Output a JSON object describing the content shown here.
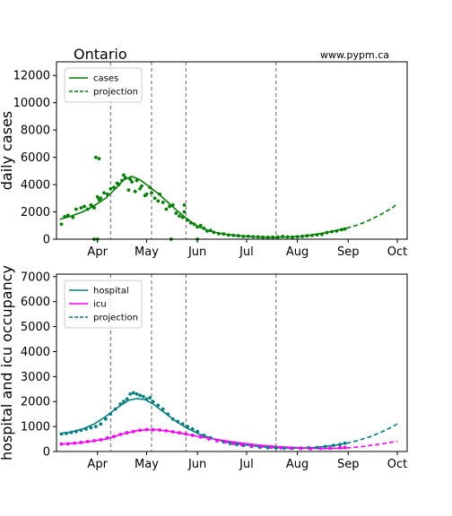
{
  "site": "www.pypm.ca",
  "chart_data": [
    {
      "type": "line",
      "title": "Ontario",
      "ylabel": "daily cases",
      "xlabel": "",
      "xlim": [
        "2021-03-07",
        "2021-10-07"
      ],
      "ylim": [
        0,
        13000
      ],
      "yticks": [
        0,
        2000,
        4000,
        6000,
        8000,
        10000,
        12000
      ],
      "xticks": [
        {
          "date": "2021-04-01",
          "label": "Apr"
        },
        {
          "date": "2021-05-01",
          "label": "May"
        },
        {
          "date": "2021-06-01",
          "label": "Jun"
        },
        {
          "date": "2021-07-01",
          "label": "Jul"
        },
        {
          "date": "2021-08-01",
          "label": "Aug"
        },
        {
          "date": "2021-09-01",
          "label": "Sep"
        },
        {
          "date": "2021-10-01",
          "label": "Oct"
        }
      ],
      "vlines": [
        "2021-04-09",
        "2021-05-04",
        "2021-05-25",
        "2021-07-19"
      ],
      "legend": {
        "position": "top-left",
        "entries": [
          {
            "label": "cases",
            "style": "solid",
            "color": "#008000"
          },
          {
            "label": "projection",
            "style": "dashed",
            "color": "#008000"
          }
        ]
      },
      "series": [
        {
          "name": "cases",
          "role": "model",
          "color": "#008000",
          "x": [
            "2021-03-09",
            "2021-03-16",
            "2021-03-23",
            "2021-03-30",
            "2021-04-06",
            "2021-04-12",
            "2021-04-17",
            "2021-04-22",
            "2021-04-27",
            "2021-05-02",
            "2021-05-08",
            "2021-05-14",
            "2021-05-20",
            "2021-05-26",
            "2021-06-01",
            "2021-06-08",
            "2021-06-15",
            "2021-06-22",
            "2021-06-29",
            "2021-07-06",
            "2021-07-13",
            "2021-07-20",
            "2021-07-27",
            "2021-08-03",
            "2021-08-10",
            "2021-08-17",
            "2021-08-24",
            "2021-08-31"
          ],
          "y": [
            1450,
            1700,
            2000,
            2450,
            3000,
            3700,
            4350,
            4600,
            4350,
            3900,
            3350,
            2700,
            2050,
            1450,
            950,
            620,
            420,
            300,
            220,
            170,
            150,
            145,
            165,
            210,
            310,
            450,
            620,
            800
          ]
        },
        {
          "name": "projection",
          "role": "projection",
          "color": "#008000",
          "x": [
            "2021-08-31",
            "2021-09-07",
            "2021-09-14",
            "2021-09-21",
            "2021-09-28",
            "2021-10-01"
          ],
          "y": [
            800,
            1050,
            1400,
            1820,
            2300,
            2620
          ]
        },
        {
          "name": "reported",
          "role": "points",
          "color": "#008000",
          "x": [
            "2021-03-10",
            "2021-03-12",
            "2021-03-14",
            "2021-03-17",
            "2021-03-19",
            "2021-03-22",
            "2021-03-24",
            "2021-03-26",
            "2021-03-28",
            "2021-03-29",
            "2021-03-30",
            "2021-04-01",
            "2021-04-02",
            "2021-04-03",
            "2021-04-05",
            "2021-04-07",
            "2021-04-09",
            "2021-04-11",
            "2021-04-13",
            "2021-04-14",
            "2021-04-16",
            "2021-04-17",
            "2021-04-18",
            "2021-04-20",
            "2021-04-21",
            "2021-04-22",
            "2021-04-24",
            "2021-04-25",
            "2021-04-27",
            "2021-04-28",
            "2021-04-30",
            "2021-05-01",
            "2021-05-03",
            "2021-05-04",
            "2021-05-06",
            "2021-05-08",
            "2021-05-09",
            "2021-05-11",
            "2021-05-13",
            "2021-05-15",
            "2021-05-17",
            "2021-05-19",
            "2021-05-21",
            "2021-05-23",
            "2021-05-24",
            "2021-05-26",
            "2021-05-28",
            "2021-05-30",
            "2021-06-01",
            "2021-06-03",
            "2021-06-05",
            "2021-06-07",
            "2021-06-09",
            "2021-06-11",
            "2021-06-14",
            "2021-06-17",
            "2021-06-20",
            "2021-06-23",
            "2021-06-26",
            "2021-06-29",
            "2021-07-02",
            "2021-07-05",
            "2021-07-08",
            "2021-07-11",
            "2021-07-14",
            "2021-07-17",
            "2021-07-20",
            "2021-07-23",
            "2021-07-26",
            "2021-07-29",
            "2021-08-01",
            "2021-08-04",
            "2021-08-07",
            "2021-08-10",
            "2021-08-13",
            "2021-08-16",
            "2021-08-19",
            "2021-08-22",
            "2021-08-25",
            "2021-08-28",
            "2021-08-30",
            "2021-03-31",
            "2021-04-02",
            "2021-03-30",
            "2021-04-01",
            "2021-05-16",
            "2021-05-24",
            "2021-06-01"
          ],
          "y": [
            1100,
            1650,
            1750,
            1600,
            2200,
            2300,
            2400,
            2200,
            2500,
            2400,
            2300,
            3100,
            2900,
            3000,
            3400,
            3300,
            3700,
            3800,
            4100,
            4000,
            4300,
            4700,
            4500,
            3600,
            4400,
            4200,
            3500,
            4300,
            3700,
            3900,
            3200,
            3300,
            3800,
            3400,
            3000,
            2800,
            3300,
            2700,
            2200,
            2400,
            2500,
            1900,
            1700,
            1600,
            2000,
            1400,
            1200,
            1100,
            900,
            1000,
            800,
            600,
            650,
            500,
            400,
            380,
            300,
            280,
            250,
            200,
            210,
            180,
            170,
            150,
            140,
            150,
            160,
            200,
            170,
            150,
            180,
            200,
            250,
            280,
            320,
            350,
            480,
            550,
            600,
            700,
            750,
            6000,
            5900,
            0,
            0,
            0,
            2500,
            0
          ]
        }
      ]
    },
    {
      "type": "line",
      "title": "",
      "ylabel": "hospital and icu occupancy",
      "xlabel": "",
      "xlim": [
        "2021-03-07",
        "2021-10-07"
      ],
      "ylim": [
        0,
        7100
      ],
      "yticks": [
        0,
        1000,
        2000,
        3000,
        4000,
        5000,
        6000,
        7000
      ],
      "xticks": [
        {
          "date": "2021-04-01",
          "label": "Apr"
        },
        {
          "date": "2021-05-01",
          "label": "May"
        },
        {
          "date": "2021-06-01",
          "label": "Jun"
        },
        {
          "date": "2021-07-01",
          "label": "Jul"
        },
        {
          "date": "2021-08-01",
          "label": "Aug"
        },
        {
          "date": "2021-09-01",
          "label": "Sep"
        },
        {
          "date": "2021-10-01",
          "label": "Oct"
        }
      ],
      "vlines": [
        "2021-04-09",
        "2021-05-04",
        "2021-05-25",
        "2021-07-19"
      ],
      "legend": {
        "position": "top-left",
        "entries": [
          {
            "label": "hospital",
            "style": "solid",
            "color": "#008080"
          },
          {
            "label": "icu",
            "style": "solid",
            "color": "#ff00ff"
          },
          {
            "label": "projection",
            "style": "dashed",
            "color": "#008080"
          }
        ]
      },
      "series": [
        {
          "name": "hospital",
          "role": "model",
          "color": "#008080",
          "x": [
            "2021-03-09",
            "2021-03-16",
            "2021-03-23",
            "2021-03-30",
            "2021-04-06",
            "2021-04-13",
            "2021-04-20",
            "2021-04-25",
            "2021-04-30",
            "2021-05-05",
            "2021-05-12",
            "2021-05-19",
            "2021-05-26",
            "2021-06-02",
            "2021-06-09",
            "2021-06-16",
            "2021-06-23",
            "2021-06-30",
            "2021-07-07",
            "2021-07-14",
            "2021-07-21",
            "2021-07-28",
            "2021-08-04",
            "2021-08-11",
            "2021-08-18",
            "2021-08-25",
            "2021-08-31"
          ],
          "y": [
            720,
            780,
            900,
            1100,
            1400,
            1750,
            2050,
            2120,
            2080,
            1900,
            1550,
            1200,
            920,
            700,
            540,
            420,
            330,
            260,
            210,
            170,
            145,
            135,
            140,
            160,
            200,
            260,
            330
          ]
        },
        {
          "name": "icu",
          "role": "model",
          "color": "#ff00ff",
          "x": [
            "2021-03-09",
            "2021-03-23",
            "2021-04-06",
            "2021-04-16",
            "2021-04-26",
            "2021-05-06",
            "2021-05-16",
            "2021-05-26",
            "2021-06-09",
            "2021-06-23",
            "2021-07-07",
            "2021-07-21",
            "2021-08-04",
            "2021-08-18",
            "2021-08-31"
          ],
          "y": [
            290,
            360,
            500,
            700,
            850,
            880,
            800,
            680,
            520,
            380,
            270,
            190,
            140,
            120,
            140
          ]
        },
        {
          "name": "hospital projection",
          "role": "projection",
          "color": "#008080",
          "x": [
            "2021-08-31",
            "2021-09-07",
            "2021-09-14",
            "2021-09-21",
            "2021-09-28",
            "2021-10-01"
          ],
          "y": [
            330,
            440,
            580,
            770,
            990,
            1110
          ]
        },
        {
          "name": "icu projection",
          "role": "projection",
          "color": "#ff00ff",
          "x": [
            "2021-08-31",
            "2021-09-10",
            "2021-09-20",
            "2021-10-01"
          ],
          "y": [
            140,
            200,
            290,
            410
          ]
        },
        {
          "name": "hospital reported",
          "role": "points",
          "color": "#008080",
          "x": [
            "2021-03-10",
            "2021-03-13",
            "2021-03-16",
            "2021-03-19",
            "2021-03-22",
            "2021-03-25",
            "2021-03-28",
            "2021-03-31",
            "2021-04-03",
            "2021-04-06",
            "2021-04-09",
            "2021-04-12",
            "2021-04-15",
            "2021-04-17",
            "2021-04-19",
            "2021-04-21",
            "2021-04-23",
            "2021-04-25",
            "2021-04-27",
            "2021-04-29",
            "2021-05-01",
            "2021-05-03",
            "2021-05-05",
            "2021-05-08",
            "2021-05-11",
            "2021-05-14",
            "2021-05-17",
            "2021-05-20",
            "2021-05-23",
            "2021-05-26",
            "2021-05-29",
            "2021-06-01",
            "2021-06-05",
            "2021-06-09",
            "2021-06-13",
            "2021-06-17",
            "2021-06-21",
            "2021-06-25",
            "2021-06-29",
            "2021-07-04",
            "2021-07-09",
            "2021-07-14",
            "2021-07-19",
            "2021-07-24",
            "2021-07-29",
            "2021-08-03",
            "2021-08-08",
            "2021-08-13",
            "2021-08-18",
            "2021-08-23",
            "2021-08-27",
            "2021-08-30"
          ],
          "y": [
            700,
            720,
            760,
            800,
            850,
            900,
            950,
            1000,
            1100,
            1300,
            1500,
            1700,
            1900,
            2000,
            2100,
            2300,
            2350,
            2300,
            2250,
            2200,
            2100,
            2150,
            2000,
            1850,
            1700,
            1500,
            1300,
            1200,
            1100,
            1000,
            900,
            800,
            650,
            550,
            450,
            380,
            320,
            280,
            240,
            200,
            170,
            150,
            140,
            130,
            135,
            140,
            150,
            160,
            200,
            240,
            280,
            330
          ]
        },
        {
          "name": "icu reported",
          "role": "points",
          "color": "#ff00ff",
          "x": [
            "2021-03-10",
            "2021-03-14",
            "2021-03-18",
            "2021-03-22",
            "2021-03-26",
            "2021-03-30",
            "2021-04-03",
            "2021-04-07",
            "2021-04-11",
            "2021-04-15",
            "2021-04-19",
            "2021-04-23",
            "2021-04-27",
            "2021-05-01",
            "2021-05-05",
            "2021-05-09",
            "2021-05-13",
            "2021-05-17",
            "2021-05-21",
            "2021-05-25",
            "2021-05-29",
            "2021-06-03",
            "2021-06-08",
            "2021-06-13",
            "2021-06-18",
            "2021-06-23",
            "2021-06-28",
            "2021-07-04",
            "2021-07-10",
            "2021-07-16",
            "2021-07-22",
            "2021-07-28",
            "2021-08-03",
            "2021-08-09",
            "2021-08-15",
            "2021-08-21",
            "2021-08-27",
            "2021-08-30"
          ],
          "y": [
            300,
            310,
            330,
            360,
            400,
            430,
            470,
            540,
            600,
            680,
            750,
            800,
            850,
            880,
            870,
            860,
            830,
            790,
            750,
            700,
            650,
            580,
            500,
            430,
            380,
            320,
            280,
            230,
            200,
            170,
            150,
            130,
            120,
            110,
            120,
            130,
            150,
            160
          ]
        }
      ]
    }
  ]
}
